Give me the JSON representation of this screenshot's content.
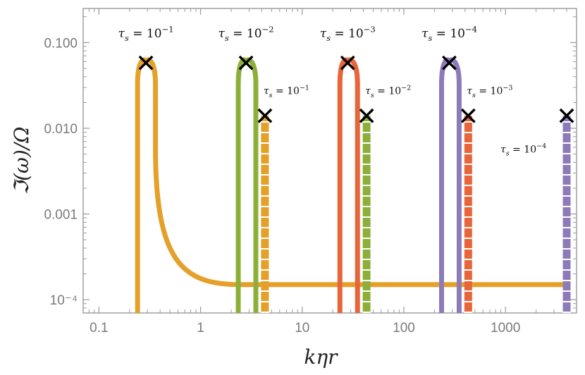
{
  "chart_data": {
    "type": "line",
    "title": "",
    "xlabel": "kηr",
    "ylabel": "ℑ(ω)/Ω",
    "xscale": "log",
    "yscale": "log",
    "xlim": [
      0.07,
      5000
    ],
    "ylim": [
      7e-05,
      0.25
    ],
    "x_ticks": [
      {
        "value": 0.1,
        "label": "0.1"
      },
      {
        "value": 1,
        "label": "1"
      },
      {
        "value": 10,
        "label": "10"
      },
      {
        "value": 100,
        "label": "100"
      },
      {
        "value": 1000,
        "label": "1000"
      }
    ],
    "y_ticks": [
      {
        "value": 0.1,
        "label": "0.100"
      },
      {
        "value": 0.01,
        "label": "0.010"
      },
      {
        "value": 0.001,
        "label": "0.001"
      },
      {
        "value": 0.0001,
        "label": "10⁻⁴"
      }
    ],
    "baseline_value": 0.00015,
    "series": [
      {
        "name": "τs = 10⁻¹ (solid)",
        "style": "solid",
        "color": "#E5A02A",
        "peak_x": 0.29,
        "peak_y": 0.058,
        "left_x": 0.24,
        "right_x": 0.36,
        "tail_to_x": 4000,
        "tail_y": 0.00015
      },
      {
        "name": "τs = 10⁻² (solid)",
        "style": "solid",
        "color": "#8CAF3A",
        "peak_x": 2.8,
        "peak_y": 0.058,
        "left_x": 2.35,
        "right_x": 3.5
      },
      {
        "name": "τs = 10⁻³ (solid)",
        "style": "solid",
        "color": "#E8653A",
        "peak_x": 28,
        "peak_y": 0.058,
        "left_x": 23.5,
        "right_x": 35
      },
      {
        "name": "τs = 10⁻⁴ (solid)",
        "style": "solid",
        "color": "#8D7BB9",
        "peak_x": 280,
        "peak_y": 0.058,
        "left_x": 235,
        "right_x": 350
      },
      {
        "name": "τs = 10⁻¹ (dashed)",
        "style": "dashed",
        "color": "#E5A02A",
        "x": 4.3,
        "top_y": 0.014
      },
      {
        "name": "τs = 10⁻² (dashed)",
        "style": "dashed",
        "color": "#8CAF3A",
        "x": 43,
        "top_y": 0.014
      },
      {
        "name": "τs = 10⁻³ (dashed)",
        "style": "dashed",
        "color": "#E8653A",
        "x": 430,
        "top_y": 0.014
      },
      {
        "name": "τs = 10⁻⁴ (dashed)",
        "style": "dashed",
        "color": "#8D7BB9",
        "x": 4000,
        "top_y": 0.014
      }
    ],
    "markers": [
      {
        "x": 0.29,
        "y": 0.058
      },
      {
        "x": 2.8,
        "y": 0.058
      },
      {
        "x": 28,
        "y": 0.058
      },
      {
        "x": 280,
        "y": 0.058
      },
      {
        "x": 4.3,
        "y": 0.014
      },
      {
        "x": 43,
        "y": 0.014
      },
      {
        "x": 430,
        "y": 0.014
      },
      {
        "x": 4000,
        "y": 0.014
      }
    ],
    "annotations": [
      {
        "base": "τ",
        "sub": "s",
        "mid": " = 10",
        "exp": "−1",
        "x": 0.29,
        "y": 0.115,
        "size": "large"
      },
      {
        "base": "τ",
        "sub": "s",
        "mid": " = 10",
        "exp": "−2",
        "x": 2.8,
        "y": 0.115,
        "size": "large"
      },
      {
        "base": "τ",
        "sub": "s",
        "mid": " = 10",
        "exp": "−3",
        "x": 28,
        "y": 0.115,
        "size": "large"
      },
      {
        "base": "τ",
        "sub": "s",
        "mid": " = 10",
        "exp": "−4",
        "x": 280,
        "y": 0.115,
        "size": "large"
      },
      {
        "base": "τ",
        "sub": "s",
        "mid": " = 10",
        "exp": "−1",
        "x": 7.0,
        "y": 0.025,
        "size": "small"
      },
      {
        "base": "τ",
        "sub": "s",
        "mid": " = 10",
        "exp": "−2",
        "x": 70,
        "y": 0.025,
        "size": "small"
      },
      {
        "base": "τ",
        "sub": "s",
        "mid": " = 10",
        "exp": "−3",
        "x": 700,
        "y": 0.025,
        "size": "small"
      },
      {
        "base": "τ",
        "sub": "s",
        "mid": " = 10",
        "exp": "−4",
        "x": 1500,
        "y": 0.0052,
        "size": "small"
      }
    ]
  }
}
